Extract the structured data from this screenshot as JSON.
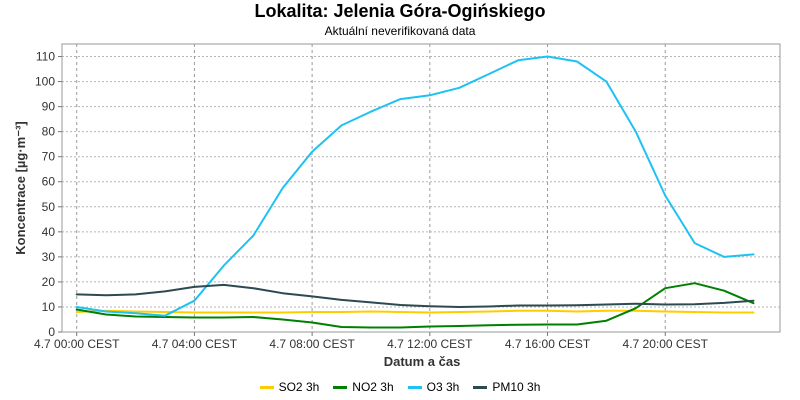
{
  "chart_data": {
    "type": "line",
    "title": "Lokalita: Jelenia Góra-Ogińskiego",
    "subtitle": "Aktuální neverifikovaná data",
    "xlabel": "Datum a čas",
    "ylabel": "Koncentrace [µg·m⁻³]",
    "ylim": [
      0,
      115
    ],
    "yticks": [
      0,
      10,
      20,
      30,
      40,
      50,
      60,
      70,
      80,
      90,
      100,
      110
    ],
    "xlim": [
      -0.5,
      23.9
    ],
    "xticks": [
      {
        "hour": 0,
        "label": "4.7 00:00 CEST"
      },
      {
        "hour": 4,
        "label": "4.7 04:00 CEST"
      },
      {
        "hour": 8,
        "label": "4.7 08:00 CEST"
      },
      {
        "hour": 12,
        "label": "4.7 12:00 CEST"
      },
      {
        "hour": 16,
        "label": "4.7 16:00 CEST"
      },
      {
        "hour": 20,
        "label": "4.7 20:00 CEST"
      }
    ],
    "grid": true,
    "legend_position": "bottom",
    "x": [
      0,
      1,
      2,
      3,
      4,
      5,
      6,
      7,
      8,
      9,
      10,
      11,
      12,
      13,
      14,
      15,
      16,
      17,
      18,
      19,
      20,
      21,
      22,
      23
    ],
    "series": [
      {
        "name": "SO2 3h",
        "color": "#ffcc00",
        "values": [
          8,
          8.5,
          8.2,
          8,
          7.8,
          7.8,
          7.8,
          7.8,
          8,
          8,
          8.2,
          8,
          7.8,
          8,
          8.2,
          8.5,
          8.5,
          8.2,
          8.5,
          8.5,
          8.2,
          8,
          7.8,
          7.8
        ]
      },
      {
        "name": "NO2 3h",
        "color": "#008000",
        "values": [
          9,
          7,
          6.2,
          6,
          5.8,
          5.8,
          6,
          5,
          3.8,
          2,
          1.8,
          1.8,
          2.2,
          2.4,
          2.7,
          2.9,
          3,
          3,
          4.5,
          9.5,
          17.5,
          19.5,
          16.5,
          11.5
        ]
      },
      {
        "name": "O3 3h",
        "color": "#1ec2f2",
        "values": [
          10,
          8.2,
          7.5,
          6.5,
          12.5,
          26.5,
          38.5,
          57.5,
          72,
          82.5,
          88,
          93,
          94.5,
          97.5,
          103,
          108.5,
          110,
          108,
          100,
          80,
          54.5,
          35.5,
          30,
          31
        ]
      },
      {
        "name": "PM10 3h",
        "color": "#2c4a52",
        "values": [
          15,
          14.7,
          15,
          16.2,
          18,
          18.8,
          17.5,
          15.5,
          14.2,
          12.8,
          11.8,
          10.8,
          10.3,
          10,
          10.2,
          10.6,
          10.6,
          10.7,
          11,
          11.3,
          11,
          11.1,
          11.6,
          12.5
        ]
      }
    ]
  }
}
